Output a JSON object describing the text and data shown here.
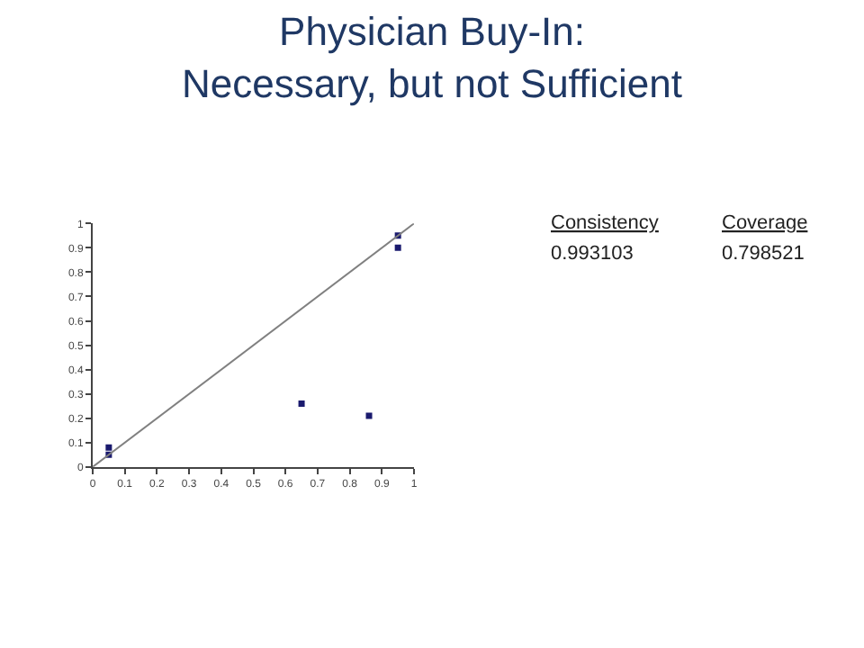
{
  "chart_data": {
    "type": "scatter",
    "title": "Physician Buy-In:\nNecessary, but not Sufficient",
    "annotations": [
      "Consistency",
      "Coverage",
      "0.993103",
      "0.798521"
    ],
    "series": [
      {
        "color": "#1a1a6e",
        "marker": "square",
        "x": [
          0.05,
          0.05,
          0.65,
          0.86,
          0.95,
          0.95
        ],
        "values": [
          0.08,
          0.05,
          0.26,
          0.21,
          0.95,
          0.9
        ]
      },
      {
        "type": "line",
        "color": "#808080",
        "marker": "none",
        "line_style": "solid",
        "x": [
          0,
          1
        ],
        "values": [
          0,
          1
        ]
      }
    ],
    "grid": false,
    "legend": false,
    "xlim": [
      0,
      1
    ],
    "ylim": [
      0,
      1
    ],
    "xticks": [
      0,
      0.1,
      0.2,
      0.3,
      0.4,
      0.5,
      0.6,
      0.7,
      0.8,
      0.9,
      1
    ],
    "yticks": [
      0,
      0.1,
      0.2,
      0.3,
      0.4,
      0.5,
      0.6,
      0.7,
      0.8,
      0.9,
      1
    ]
  }
}
